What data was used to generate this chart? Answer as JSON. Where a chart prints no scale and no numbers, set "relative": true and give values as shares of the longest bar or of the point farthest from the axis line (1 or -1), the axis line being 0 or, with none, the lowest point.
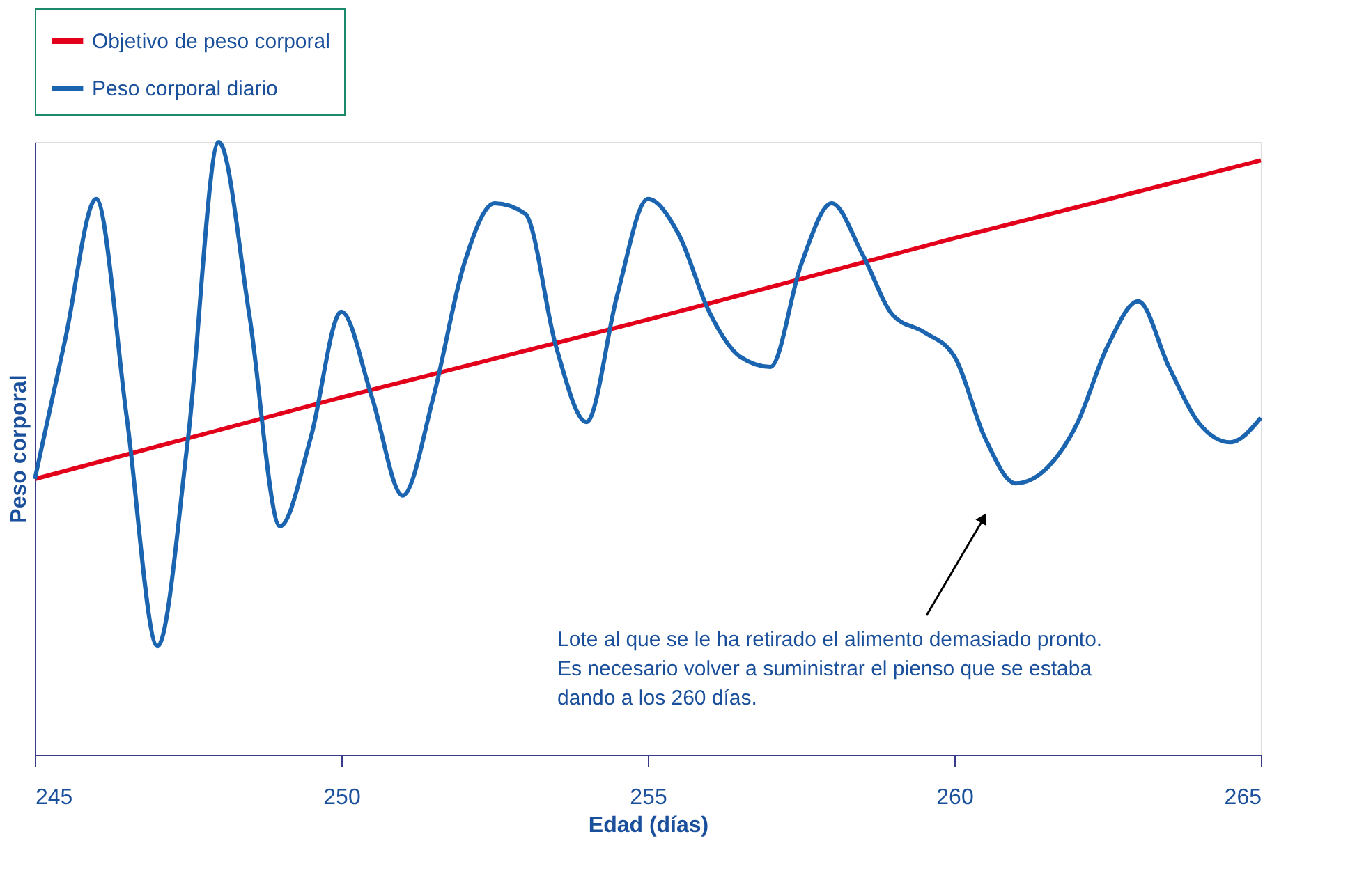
{
  "chart_data": {
    "type": "line",
    "relative": true,
    "xlabel": "Edad (días)",
    "ylabel": "Peso corporal",
    "xlim": [
      245,
      265
    ],
    "xticks": [
      245,
      250,
      255,
      260,
      265
    ],
    "legend": "top",
    "line_style": "solid",
    "marker": "none",
    "series": [
      {
        "name": "Objetivo de peso corporal",
        "color": "#e2001a",
        "x": [
          245,
          250,
          255,
          260,
          265
        ],
        "values": [
          0.45,
          0.583,
          0.71,
          0.843,
          0.97
        ]
      },
      {
        "name": "Peso corporal diario",
        "color": "#1a64b0",
        "x": [
          245,
          245.5,
          246,
          246.5,
          247,
          247.5,
          248,
          248.5,
          249,
          249.5,
          250,
          250.5,
          251,
          251.5,
          252,
          252.5,
          253,
          253.5,
          254,
          254.5,
          255,
          255.5,
          256,
          256.5,
          257,
          257.5,
          258,
          258.5,
          259,
          259.5,
          260,
          260.5,
          261,
          261.5,
          262,
          262.5,
          263,
          263.5,
          264,
          264.5,
          265
        ],
        "values": [
          0.45,
          0.68,
          0.907,
          0.55,
          0.177,
          0.517,
          1.0,
          0.717,
          0.373,
          0.517,
          0.723,
          0.583,
          0.423,
          0.583,
          0.8,
          0.9,
          0.883,
          0.667,
          0.543,
          0.75,
          0.907,
          0.85,
          0.723,
          0.65,
          0.633,
          0.8,
          0.9,
          0.817,
          0.717,
          0.69,
          0.65,
          0.517,
          0.443,
          0.467,
          0.54,
          0.667,
          0.74,
          0.633,
          0.54,
          0.51,
          0.55
        ]
      }
    ],
    "annotations": [
      "Lote al que se le ha retirado el alimento demasiado pronto.\nEs necesario volver a suministrar el pienso que se estaba\ndando a los 260 días."
    ]
  }
}
